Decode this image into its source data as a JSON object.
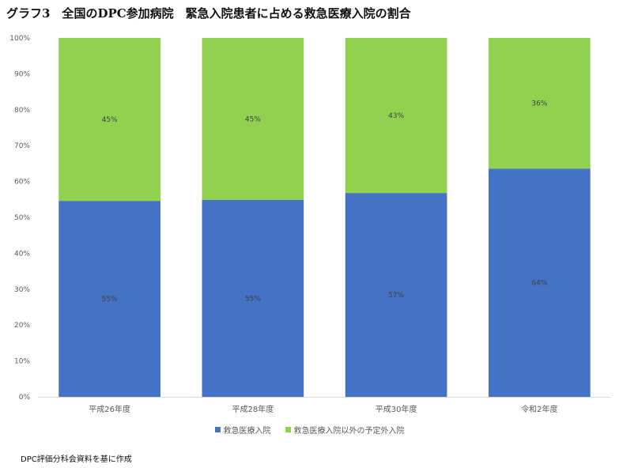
{
  "title": "グラフ3　全国のDPC参加病院　緊急入院患者に占める救急医療入院の割合",
  "source_note": "DPC評価分科会資料を基に作成",
  "colors": {
    "emergency": "#4472C4",
    "other": "#92D050"
  },
  "chart_data": {
    "type": "bar",
    "stacked": true,
    "percent_stacked": true,
    "categories": [
      "平成26年度",
      "平成28年度",
      "平成30年度",
      "令和2年度"
    ],
    "series": [
      {
        "name": "救急医療入院",
        "values": [
          54.6,
          54.9,
          56.8,
          63.6
        ],
        "labels": [
          "55%",
          "55%",
          "57%",
          "64%"
        ]
      },
      {
        "name": "救急医療入院以外の予定外入院",
        "values": [
          45.4,
          45.1,
          43.2,
          36.4
        ],
        "labels": [
          "45%",
          "45%",
          "43%",
          "36%"
        ]
      }
    ],
    "ylim": [
      0,
      100
    ],
    "yticks": [
      "0%",
      "10%",
      "20%",
      "30%",
      "40%",
      "50%",
      "60%",
      "70%",
      "80%",
      "90%",
      "100%"
    ],
    "grid": false,
    "legend_position": "bottom"
  }
}
